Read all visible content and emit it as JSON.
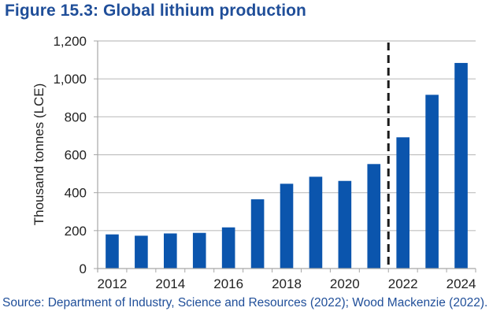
{
  "title": "Figure 15.3: Global lithium production",
  "source": "Source: Department of Industry, Science and Resources (2022); Wood Mackenzie (2022).",
  "colors": {
    "bar": "#0b55ad",
    "title": "#1f4e99",
    "grid": "#bfbfbf",
    "axis": "#a6a6a6",
    "divider": "#1a1a1a"
  },
  "chart_data": {
    "type": "bar",
    "title": "Figure 15.3: Global lithium production",
    "xlabel": "",
    "ylabel": "Thousand tonnes (LCE)",
    "categories": [
      "2012",
      "2013",
      "2014",
      "2015",
      "2016",
      "2017",
      "2018",
      "2019",
      "2020",
      "2021",
      "2022",
      "2023",
      "2024"
    ],
    "values": [
      180,
      173,
      185,
      188,
      217,
      365,
      447,
      484,
      462,
      551,
      692,
      916,
      1084
    ],
    "x_tick_labels": [
      "2012",
      "2014",
      "2016",
      "2018",
      "2020",
      "2022",
      "2024"
    ],
    "y_ticks": [
      0,
      200,
      400,
      600,
      800,
      1000,
      1200
    ],
    "y_tick_labels": [
      "0",
      "200",
      "400",
      "600",
      "800",
      "1,000",
      "1,200"
    ],
    "ylim": [
      0,
      1200
    ],
    "grid": true,
    "legend": "none",
    "annotations": [
      {
        "type": "vertical-dashed-line",
        "between": [
          "2021",
          "2022"
        ],
        "meaning": "actual vs forecast divider"
      }
    ]
  }
}
